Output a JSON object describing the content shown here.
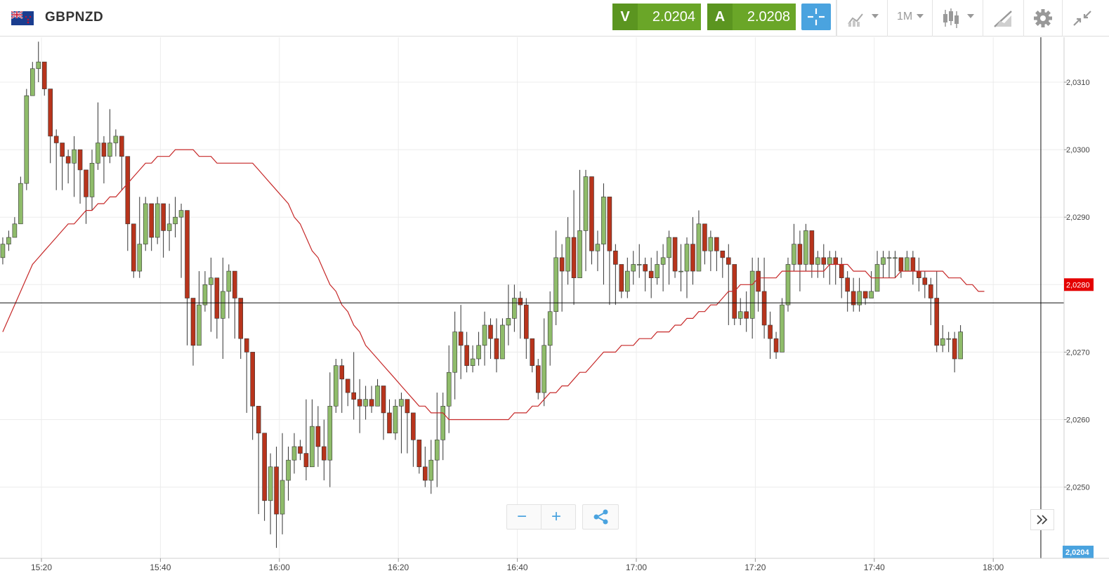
{
  "header": {
    "symbol": "GBPNZD",
    "flag_icon": "uk-nz-flag-icon",
    "sell": {
      "letter": "V",
      "price": "2.0204",
      "color": "#6aa628"
    },
    "buy": {
      "letter": "A",
      "price": "2.0208",
      "color": "#6aa628"
    },
    "timeframe": "1M",
    "tools": [
      "crosshair-icon",
      "indicators-icon",
      "timeframe-dropdown",
      "chart-type-icon",
      "drawing-icon",
      "gear-icon",
      "collapse-icon"
    ]
  },
  "controls": {
    "zoom_out": "−",
    "zoom_in": "+",
    "share_icon": "share-icon",
    "scroll_icon": "double-chevron-right-icon"
  },
  "chart_data": {
    "type": "candlestick",
    "ylim": [
      2.024,
      2.0316
    ],
    "y_ticks": [
      "2,0310",
      "2,0300",
      "2,0290",
      "2,0270",
      "2,0260",
      "2,0250"
    ],
    "y_tick_values": [
      2.031,
      2.03,
      2.029,
      2.027,
      2.026,
      2.025
    ],
    "x_ticks": [
      "15:20",
      "15:40",
      "16:00",
      "16:20",
      "16:40",
      "17:00",
      "17:20",
      "17:40",
      "18:00"
    ],
    "x_tick_minutes": [
      80,
      100,
      120,
      140,
      160,
      180,
      200,
      220,
      240
    ],
    "start_minute": 73,
    "candle_minutes": 1,
    "ma_label": "2,0280",
    "ma_value": 2.028,
    "current_label": "2,0204",
    "crosshair_price": 2.02773,
    "crosshair_minute": 248,
    "colors": {
      "up": "#8fbc6a",
      "down": "#b8341c",
      "ma": "#c62828",
      "ma_label": "#e40000",
      "current_label": "#4aa3df"
    },
    "closes": [
      2.0286,
      2.0287,
      2.0289,
      2.0295,
      2.0308,
      2.0312,
      2.0313,
      2.0309,
      2.0302,
      2.0301,
      2.0299,
      2.0298,
      2.03,
      2.0297,
      2.0293,
      2.0298,
      2.0301,
      2.0299,
      2.0301,
      2.0302,
      2.0299,
      2.0289,
      2.0282,
      2.0286,
      2.0292,
      2.0287,
      2.0292,
      2.0288,
      2.0289,
      2.029,
      2.0291,
      2.0278,
      2.0271,
      2.0277,
      2.028,
      2.0281,
      2.0275,
      2.0279,
      2.0282,
      2.0278,
      2.0272,
      2.027,
      2.0262,
      2.0258,
      2.0248,
      2.0253,
      2.0246,
      2.0251,
      2.0254,
      2.0256,
      2.0255,
      2.0253,
      2.0259,
      2.0256,
      2.0254,
      2.0262,
      2.0268,
      2.0266,
      2.0264,
      2.0263,
      2.0262,
      2.0263,
      2.0262,
      2.0265,
      2.0261,
      2.0258,
      2.0262,
      2.0263,
      2.0261,
      2.0257,
      2.0253,
      2.0251,
      2.0254,
      2.0257,
      2.0262,
      2.0267,
      2.0273,
      2.0271,
      2.0268,
      2.0269,
      2.0271,
      2.0274,
      2.0272,
      2.0269,
      2.0274,
      2.0275,
      2.0278,
      2.0277,
      2.0272,
      2.0268,
      2.0264,
      2.0271,
      2.0276,
      2.0284,
      2.0282,
      2.0287,
      2.0281,
      2.0288,
      2.0296,
      2.0285,
      2.0286,
      2.0293,
      2.0285,
      2.0283,
      2.0279,
      2.0282,
      2.0283,
      2.0283,
      2.0282,
      2.0281,
      2.0283,
      2.0284,
      2.0287,
      2.0282,
      2.0282,
      2.0286,
      2.0282,
      2.0289,
      2.0285,
      2.0287,
      2.0285,
      2.0284,
      2.0283,
      2.0275,
      2.0276,
      2.0275,
      2.0282,
      2.0279,
      2.0274,
      2.0272,
      2.027,
      2.0277,
      2.0283,
      2.0286,
      2.0283,
      2.0288,
      2.0283,
      2.0284,
      2.0283,
      2.0284,
      2.0283,
      2.0281,
      2.0279,
      2.0277,
      2.0279,
      2.0278,
      2.0279,
      2.0283,
      2.0284,
      2.0284,
      2.0284,
      2.0282,
      2.0284,
      2.0282,
      2.0281,
      2.028,
      2.0278,
      2.0271,
      2.0272,
      2.0272,
      2.0269,
      2.0273
    ],
    "highs": [
      2.0287,
      2.0288,
      2.029,
      2.0296,
      2.0309,
      2.0313,
      2.0316,
      2.0312,
      2.0304,
      2.0303,
      2.03,
      2.03,
      2.0302,
      2.0299,
      2.0296,
      2.03,
      2.0307,
      2.0302,
      2.0306,
      2.0303,
      2.0301,
      2.029,
      2.0286,
      2.0293,
      2.0293,
      2.0292,
      2.0293,
      2.0291,
      2.0292,
      2.0293,
      2.0292,
      2.0279,
      2.0277,
      2.0282,
      2.0282,
      2.0284,
      2.0278,
      2.0284,
      2.0283,
      2.0279,
      2.0275,
      2.0271,
      2.0263,
      2.0259,
      2.0249,
      2.0255,
      2.0256,
      2.0258,
      2.0256,
      2.0258,
      2.0257,
      2.0263,
      2.0263,
      2.0262,
      2.026,
      2.0267,
      2.0269,
      2.0269,
      2.0266,
      2.027,
      2.0266,
      2.0265,
      2.0265,
      2.0266,
      2.0265,
      2.0263,
      2.0263,
      2.0264,
      2.0263,
      2.026,
      2.0256,
      2.0256,
      2.0257,
      2.0264,
      2.0264,
      2.0271,
      2.0276,
      2.0277,
      2.0273,
      2.0271,
      2.0273,
      2.0276,
      2.0275,
      2.0275,
      2.0275,
      2.028,
      2.028,
      2.0279,
      2.0278,
      2.0272,
      2.0269,
      2.0275,
      2.0279,
      2.0288,
      2.0286,
      2.029,
      2.0294,
      2.0297,
      2.0297,
      2.0296,
      2.0288,
      2.0295,
      2.0287,
      2.0286,
      2.0283,
      2.0284,
      2.0285,
      2.0286,
      2.0284,
      2.0284,
      2.0285,
      2.0286,
      2.0288,
      2.0287,
      2.0286,
      2.0287,
      2.029,
      2.0291,
      2.0289,
      2.0288,
      2.0287,
      2.0284,
      2.0286,
      2.0279,
      2.0278,
      2.0279,
      2.0284,
      2.0284,
      2.0284,
      2.0276,
      2.0273,
      2.0278,
      2.0284,
      2.0289,
      2.0288,
      2.0289,
      2.0288,
      2.0285,
      2.0286,
      2.0285,
      2.0285,
      2.0284,
      2.0282,
      2.0281,
      2.0281,
      2.0279,
      2.0282,
      2.0285,
      2.0285,
      2.0285,
      2.0285,
      2.0284,
      2.0285,
      2.0285,
      2.0284,
      2.0282,
      2.0281,
      2.0282,
      2.0274,
      2.0273,
      2.0273,
      2.0274
    ],
    "lows": [
      2.0283,
      2.0285,
      2.0287,
      2.0289,
      2.0294,
      2.0308,
      2.031,
      2.0308,
      2.0298,
      2.0294,
      2.0294,
      2.0295,
      2.0293,
      2.0292,
      2.0289,
      2.0291,
      2.0297,
      2.0295,
      2.0298,
      2.0299,
      2.0294,
      2.0285,
      2.0281,
      2.0281,
      2.0285,
      2.0285,
      2.0286,
      2.0284,
      2.0285,
      2.0287,
      2.0281,
      2.0271,
      2.0268,
      2.0271,
      2.0276,
      2.0273,
      2.0272,
      2.0269,
      2.0275,
      2.0272,
      2.0269,
      2.0261,
      2.0257,
      2.0246,
      2.0245,
      2.0243,
      2.0241,
      2.0243,
      2.0248,
      2.0252,
      2.0254,
      2.0251,
      2.0253,
      2.0253,
      2.0251,
      2.025,
      2.0261,
      2.0261,
      2.0262,
      2.026,
      2.0258,
      2.026,
      2.0261,
      2.0262,
      2.0257,
      2.0258,
      2.0257,
      2.0255,
      2.0255,
      2.0253,
      2.0252,
      2.025,
      2.0249,
      2.025,
      2.0254,
      2.0258,
      2.0263,
      2.0266,
      2.0267,
      2.0267,
      2.0268,
      2.0268,
      2.0269,
      2.0267,
      2.0269,
      2.0271,
      2.0273,
      2.0272,
      2.0269,
      2.0267,
      2.0263,
      2.0262,
      2.0268,
      2.0274,
      2.0276,
      2.028,
      2.0277,
      2.0282,
      2.0282,
      2.0283,
      2.0282,
      2.028,
      2.0277,
      2.0277,
      2.0278,
      2.0278,
      2.028,
      2.0281,
      2.0279,
      2.0278,
      2.028,
      2.0279,
      2.028,
      2.0281,
      2.0279,
      2.0278,
      2.028,
      2.0284,
      2.0283,
      2.0282,
      2.0282,
      2.0281,
      2.0274,
      2.0274,
      2.0274,
      2.0273,
      2.0272,
      2.0276,
      2.0272,
      2.0269,
      2.0269,
      2.027,
      2.0276,
      2.0282,
      2.0279,
      2.0282,
      2.0281,
      2.0281,
      2.0281,
      2.028,
      2.028,
      2.0278,
      2.0276,
      2.0276,
      2.0276,
      2.0277,
      2.0278,
      2.0281,
      2.0281,
      2.0281,
      2.0281,
      2.0281,
      2.0282,
      2.028,
      2.0279,
      2.0278,
      2.0274,
      2.027,
      2.027,
      2.027,
      2.0267,
      2.0269
    ],
    "ma": [
      2.0273,
      2.0275,
      2.0277,
      2.0279,
      2.0281,
      2.0283,
      2.0284,
      2.0285,
      2.0286,
      2.0287,
      2.0288,
      2.0289,
      2.0289,
      2.029,
      2.0291,
      2.0291,
      2.0292,
      2.0292,
      2.0293,
      2.0293,
      2.0294,
      2.0295,
      2.0296,
      2.0297,
      2.0298,
      2.0298,
      2.0299,
      2.0299,
      2.0299,
      2.03,
      2.03,
      2.03,
      2.03,
      2.0299,
      2.0299,
      2.0299,
      2.0298,
      2.0298,
      2.0298,
      2.0298,
      2.0298,
      2.0298,
      2.0298,
      2.0297,
      2.0296,
      2.0295,
      2.0294,
      2.0293,
      2.0292,
      2.029,
      2.0289,
      2.0287,
      2.0285,
      2.0284,
      2.0282,
      2.028,
      2.0279,
      2.0277,
      2.0276,
      2.0274,
      2.0273,
      2.0271,
      2.027,
      2.0269,
      2.0268,
      2.0267,
      2.0266,
      2.0265,
      2.0264,
      2.0263,
      2.0262,
      2.0262,
      2.0261,
      2.0261,
      2.0261,
      2.026,
      2.026,
      2.026,
      2.026,
      2.026,
      2.026,
      2.026,
      2.026,
      2.026,
      2.026,
      2.026,
      2.0261,
      2.0261,
      2.0261,
      2.0262,
      2.0262,
      2.0263,
      2.0264,
      2.0264,
      2.0265,
      2.0265,
      2.0266,
      2.0267,
      2.0267,
      2.0268,
      2.0269,
      2.027,
      2.027,
      2.027,
      2.0271,
      2.0271,
      2.0271,
      2.0272,
      2.0272,
      2.0272,
      2.0273,
      2.0273,
      2.0273,
      2.0274,
      2.0274,
      2.0275,
      2.0275,
      2.0276,
      2.0276,
      2.0277,
      2.0277,
      2.0278,
      2.0279,
      2.0279,
      2.028,
      2.028,
      2.028,
      2.0281,
      2.0281,
      2.0281,
      2.0281,
      2.0282,
      2.0282,
      2.0282,
      2.0282,
      2.0282,
      2.0282,
      2.0282,
      2.0282,
      2.0283,
      2.0283,
      2.0283,
      2.0283,
      2.0282,
      2.0282,
      2.0282,
      2.0281,
      2.0281,
      2.0281,
      2.0281,
      2.0281,
      2.0282,
      2.0282,
      2.0282,
      2.0282,
      2.0282,
      2.0282,
      2.0282,
      2.0282,
      2.0281,
      2.0281,
      2.0281,
      2.028,
      2.028,
      2.0279,
      2.0279
    ]
  }
}
